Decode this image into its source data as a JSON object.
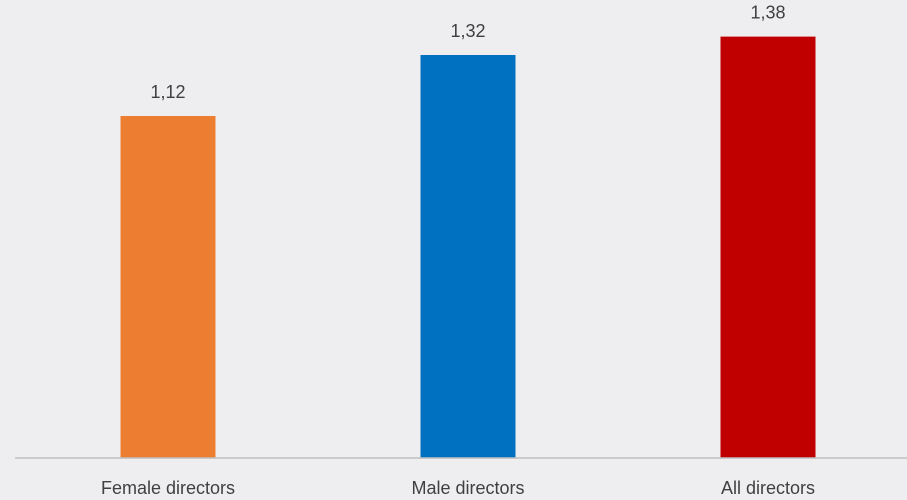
{
  "chart_data": {
    "type": "bar",
    "categories": [
      "Female directors",
      "Male directors",
      "All directors"
    ],
    "values": [
      1.12,
      1.32,
      1.38
    ],
    "value_labels": [
      "1,12",
      "1,32",
      "1,38"
    ],
    "bar_colors": [
      "#ed7d31",
      "#0070c0",
      "#c00000"
    ],
    "axis_color": "#bfbfbf",
    "background_color": "#eeeef1",
    "ylim": [
      0,
      1.5
    ],
    "grid": false,
    "legend": "none"
  }
}
